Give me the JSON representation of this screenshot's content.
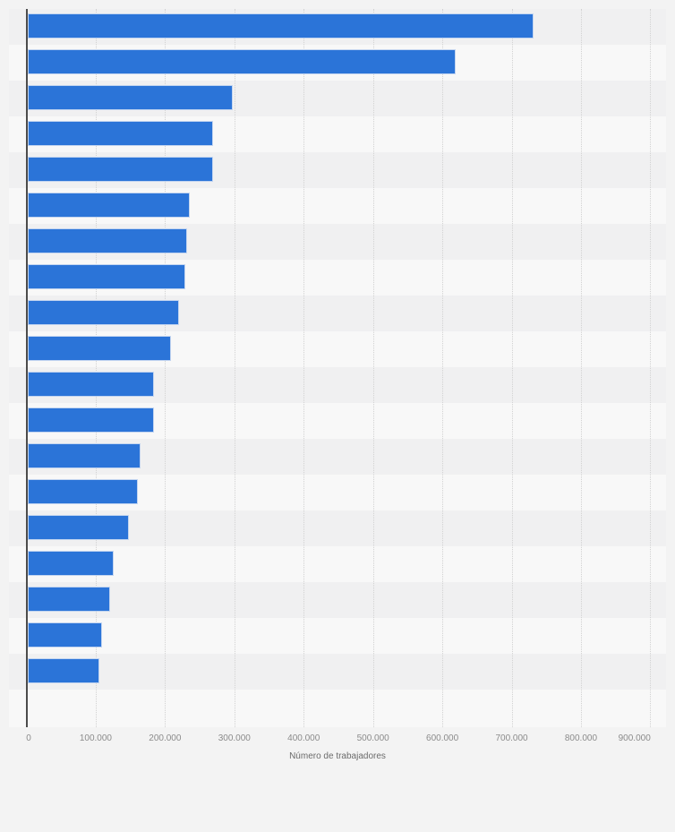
{
  "chart_data": {
    "type": "bar",
    "orientation": "horizontal",
    "title": "",
    "xlabel": "Número de trabajadores",
    "ylabel": "",
    "xlim": [
      0,
      900000
    ],
    "grid": "vertical-dotted",
    "legend": "none",
    "category_labels_visible": false,
    "xticks": [
      "0",
      "100.000",
      "200.000",
      "300.000",
      "400.000",
      "500.000",
      "600.000",
      "700.000",
      "800.000",
      "900.000"
    ],
    "values": [
      730000,
      618000,
      296000,
      268000,
      268000,
      235000,
      231000,
      228000,
      219000,
      207000,
      183000,
      183000,
      163000,
      160000,
      147000,
      124000,
      120000,
      108000,
      104000
    ]
  },
  "colors": {
    "bar": "#2b74d8",
    "bar_border": "#c3d5f0",
    "background": "#f3f3f3",
    "stripe_dark": "#f0f0f1",
    "stripe_light": "#f8f8f8",
    "gridline": "#d2d2d2",
    "axis_line": "#4c4c4c",
    "tick_text": "#8b8b8b",
    "axis_title_text": "#6b6b6b"
  }
}
